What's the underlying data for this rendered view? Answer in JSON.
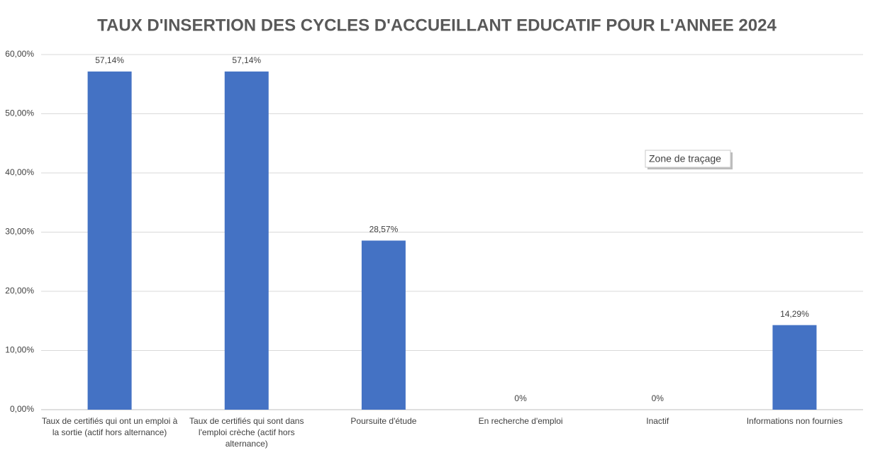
{
  "chart_data": {
    "type": "bar",
    "title": "TAUX D'INSERTION DES CYCLES D'ACCUEILLANT EDUCATIF POUR L'ANNEE 2024",
    "categories": [
      "Taux de certifiés qui ont un emploi à la sortie (actif hors alternance)",
      "Taux de certifiés qui sont dans l'emploi crèche (actif hors alternance)",
      "Poursuite d'étude",
      "En recherche d'emploi",
      "Inactif",
      "Informations non fournies"
    ],
    "values": [
      57.14,
      57.14,
      28.57,
      0,
      0,
      14.29
    ],
    "value_labels": [
      "57,14%",
      "57,14%",
      "28,57%",
      "0%",
      "0%",
      "14,29%"
    ],
    "color": "#4472c4",
    "ylim": [
      0,
      60
    ],
    "yticks": [
      {
        "value": 0,
        "label": "0,00%"
      },
      {
        "value": 10,
        "label": "10,00%"
      },
      {
        "value": 20,
        "label": "20,00%"
      },
      {
        "value": 30,
        "label": "30,00%"
      },
      {
        "value": 40,
        "label": "40,00%"
      },
      {
        "value": 50,
        "label": "50,00%"
      },
      {
        "value": 60,
        "label": "60,00%"
      }
    ],
    "grid": true,
    "annotation": "Zone de traçage"
  }
}
